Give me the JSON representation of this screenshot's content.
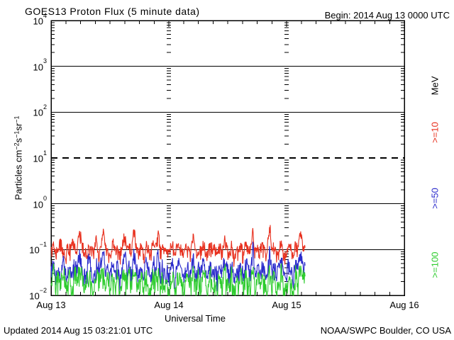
{
  "header": {
    "title": "GOES13 Proton Flux (5 minute data)",
    "begin_label": "Begin: 2014 Aug 13 0000 UTC"
  },
  "footer": {
    "updated": "Updated 2014 Aug 15 03:21:01 UTC",
    "source": "NOAA/SWPC Boulder, CO USA"
  },
  "colors": {
    "frame": "#000000",
    "p10": "#e8301e",
    "p50": "#2b2bcc",
    "p100": "#2ecc2e"
  },
  "chart_data": {
    "type": "line",
    "title": "GOES13 Proton Flux (5 minute data)",
    "xlabel": "Universal Time",
    "ylabel_parts": [
      {
        "t": "Particles cm"
      },
      {
        "s": "-2"
      },
      {
        "t": "s"
      },
      {
        "s": "-1"
      },
      {
        "t": "sr"
      },
      {
        "s": "-1"
      }
    ],
    "x_ticks": [
      "Aug 13",
      "Aug 14",
      "Aug 15",
      "Aug 16"
    ],
    "x_days": [
      0,
      1,
      2,
      3
    ],
    "x_minor_per_day": 8,
    "y_tick_exponents": [
      4,
      3,
      2,
      1,
      0,
      -1,
      -2
    ],
    "ylim": [
      0.01,
      10000
    ],
    "grid": {
      "solid_exps": [
        3,
        2,
        0,
        -1
      ],
      "dashed_exps": [
        1
      ],
      "vertical_day_lines": [
        1,
        2
      ]
    },
    "legend": [
      {
        "label": "MeV",
        "color": "#000000"
      },
      {
        "label": ">=10",
        "color": "#e8301e"
      },
      {
        "label": ">=50",
        "color": "#2b2bcc"
      },
      {
        "label": ">=100",
        "color": "#2ecc2e"
      }
    ],
    "x_start_day": 0,
    "x_end_day": 2.157,
    "series": [
      {
        "name": ">=10 MeV",
        "color": "#e8301e",
        "jitter": 0.22,
        "values": [
          0.09,
          0.12,
          0.08,
          0.1,
          0.15,
          0.09,
          0.07,
          0.11,
          0.09,
          0.13,
          0.1,
          0.08,
          0.28,
          0.11,
          0.09,
          0.07,
          0.12,
          0.1,
          0.09,
          0.16,
          0.08,
          0.11,
          0.25,
          0.09,
          0.1,
          0.07,
          0.13,
          0.09,
          0.11,
          0.08,
          0.1,
          0.19,
          0.09,
          0.12,
          0.08,
          0.3,
          0.1,
          0.09,
          0.11,
          0.07,
          0.13,
          0.09,
          0.08,
          0.12,
          0.1,
          0.22,
          0.09,
          0.11,
          0.08,
          0.1,
          0.09,
          0.14,
          0.07,
          0.1,
          0.12,
          0.09,
          0.08,
          0.11,
          0.1,
          0.09,
          0.17,
          0.08,
          0.11,
          0.09,
          0.13,
          0.1,
          0.07,
          0.12,
          0.09,
          0.1,
          0.08,
          0.11,
          0.09,
          0.15,
          0.1,
          0.08,
          0.12,
          0.07,
          0.1,
          0.09,
          0.11,
          0.08,
          0.13,
          0.1,
          0.09,
          0.26,
          0.08,
          0.11,
          0.09,
          0.12,
          0.1,
          0.07,
          0.32,
          0.09,
          0.11,
          0.08,
          0.1,
          0.13,
          0.09,
          0.07,
          0.11,
          0.1,
          0.08,
          0.12,
          0.09,
          0.24,
          0.1,
          0.11
        ]
      },
      {
        "name": ">=50 MeV",
        "color": "#2b2bcc",
        "jitter": 0.28,
        "values": [
          0.03,
          0.05,
          0.025,
          0.04,
          0.02,
          0.06,
          0.035,
          0.03,
          0.045,
          0.025,
          0.05,
          0.03,
          0.08,
          0.04,
          0.025,
          0.035,
          0.06,
          0.03,
          0.02,
          0.045,
          0.035,
          0.05,
          0.1,
          0.03,
          0.04,
          0.025,
          0.055,
          0.03,
          0.045,
          0.02,
          0.04,
          0.07,
          0.03,
          0.05,
          0.025,
          0.09,
          0.035,
          0.03,
          0.045,
          0.02,
          0.055,
          0.03,
          0.025,
          0.05,
          0.04,
          0.08,
          0.03,
          0.045,
          0.025,
          0.035,
          0.03,
          0.06,
          0.02,
          0.04,
          0.05,
          0.03,
          0.025,
          0.045,
          0.035,
          0.03,
          0.07,
          0.025,
          0.045,
          0.03,
          0.055,
          0.04,
          0.02,
          0.05,
          0.03,
          0.035,
          0.025,
          0.045,
          0.03,
          0.065,
          0.04,
          0.025,
          0.05,
          0.02,
          0.035,
          0.03,
          0.045,
          0.025,
          0.055,
          0.04,
          0.03,
          0.11,
          0.025,
          0.045,
          0.03,
          0.05,
          0.035,
          0.02,
          0.09,
          0.03,
          0.045,
          0.025,
          0.04,
          0.055,
          0.03,
          0.02,
          0.045,
          0.035,
          0.025,
          0.05,
          0.03,
          0.08,
          0.04,
          0.045
        ]
      },
      {
        "name": ">=100 MeV",
        "color": "#2ecc2e",
        "jitter": 0.33,
        "values": [
          0.018,
          0.03,
          0.012,
          0.025,
          0.015,
          0.035,
          0.02,
          0.014,
          0.028,
          0.011,
          0.03,
          0.016,
          0.038,
          0.022,
          0.012,
          0.02,
          0.033,
          0.015,
          0.01,
          0.026,
          0.019,
          0.03,
          0.04,
          0.014,
          0.024,
          0.012,
          0.032,
          0.016,
          0.027,
          0.01,
          0.022,
          0.035,
          0.015,
          0.028,
          0.012,
          0.038,
          0.02,
          0.016,
          0.026,
          0.01,
          0.03,
          0.015,
          0.012,
          0.028,
          0.022,
          0.036,
          0.014,
          0.026,
          0.012,
          0.019,
          0.016,
          0.032,
          0.01,
          0.024,
          0.028,
          0.015,
          0.012,
          0.026,
          0.02,
          0.016,
          0.035,
          0.012,
          0.026,
          0.015,
          0.03,
          0.022,
          0.01,
          0.028,
          0.014,
          0.02,
          0.012,
          0.026,
          0.016,
          0.034,
          0.022,
          0.012,
          0.028,
          0.01,
          0.019,
          0.015,
          0.026,
          0.012,
          0.03,
          0.022,
          0.016,
          0.04,
          0.012,
          0.026,
          0.015,
          0.028,
          0.02,
          0.01,
          0.036,
          0.016,
          0.026,
          0.012,
          0.022,
          0.03,
          0.015,
          0.01,
          0.026,
          0.019,
          0.012,
          0.028,
          0.014,
          0.035,
          0.022,
          0.026
        ]
      }
    ]
  }
}
